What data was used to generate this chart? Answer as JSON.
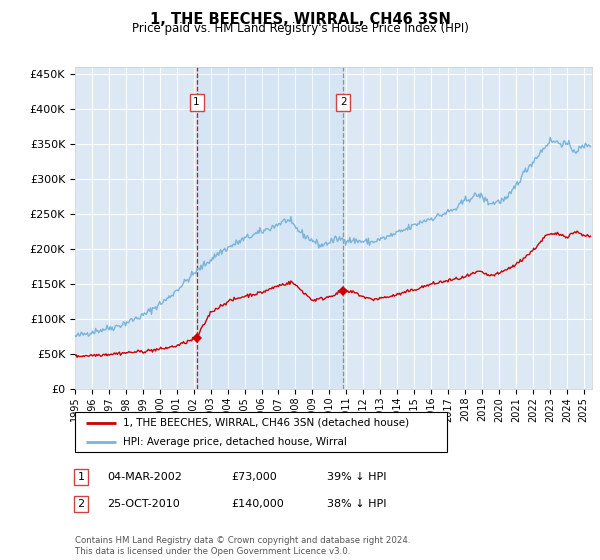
{
  "title": "1, THE BEECHES, WIRRAL, CH46 3SN",
  "subtitle": "Price paid vs. HM Land Registry's House Price Index (HPI)",
  "ylabel_ticks": [
    "£0",
    "£50K",
    "£100K",
    "£150K",
    "£200K",
    "£250K",
    "£300K",
    "£350K",
    "£400K",
    "£450K"
  ],
  "ytick_values": [
    0,
    50000,
    100000,
    150000,
    200000,
    250000,
    300000,
    350000,
    400000,
    450000
  ],
  "ylim": [
    0,
    460000
  ],
  "xlim_start": 1995.0,
  "xlim_end": 2025.5,
  "bg_color": "#dce9f5",
  "grid_color": "#ffffff",
  "hpi_color": "#7ab4d8",
  "price_color": "#cc0000",
  "marker1_x": 2002.17,
  "marker1_y": 73000,
  "marker2_x": 2010.83,
  "marker2_y": 140000,
  "legend_line1": "1, THE BEECHES, WIRRAL, CH46 3SN (detached house)",
  "legend_line2": "HPI: Average price, detached house, Wirral",
  "table_row1": [
    "1",
    "04-MAR-2002",
    "£73,000",
    "39% ↓ HPI"
  ],
  "table_row2": [
    "2",
    "25-OCT-2010",
    "£140,000",
    "38% ↓ HPI"
  ],
  "footer": "Contains HM Land Registry data © Crown copyright and database right 2024.\nThis data is licensed under the Open Government Licence v3.0.",
  "xtick_years": [
    1995,
    1996,
    1997,
    1998,
    1999,
    2000,
    2001,
    2002,
    2003,
    2004,
    2005,
    2006,
    2007,
    2008,
    2009,
    2010,
    2011,
    2012,
    2013,
    2014,
    2015,
    2016,
    2017,
    2018,
    2019,
    2020,
    2021,
    2022,
    2023,
    2024,
    2025
  ]
}
